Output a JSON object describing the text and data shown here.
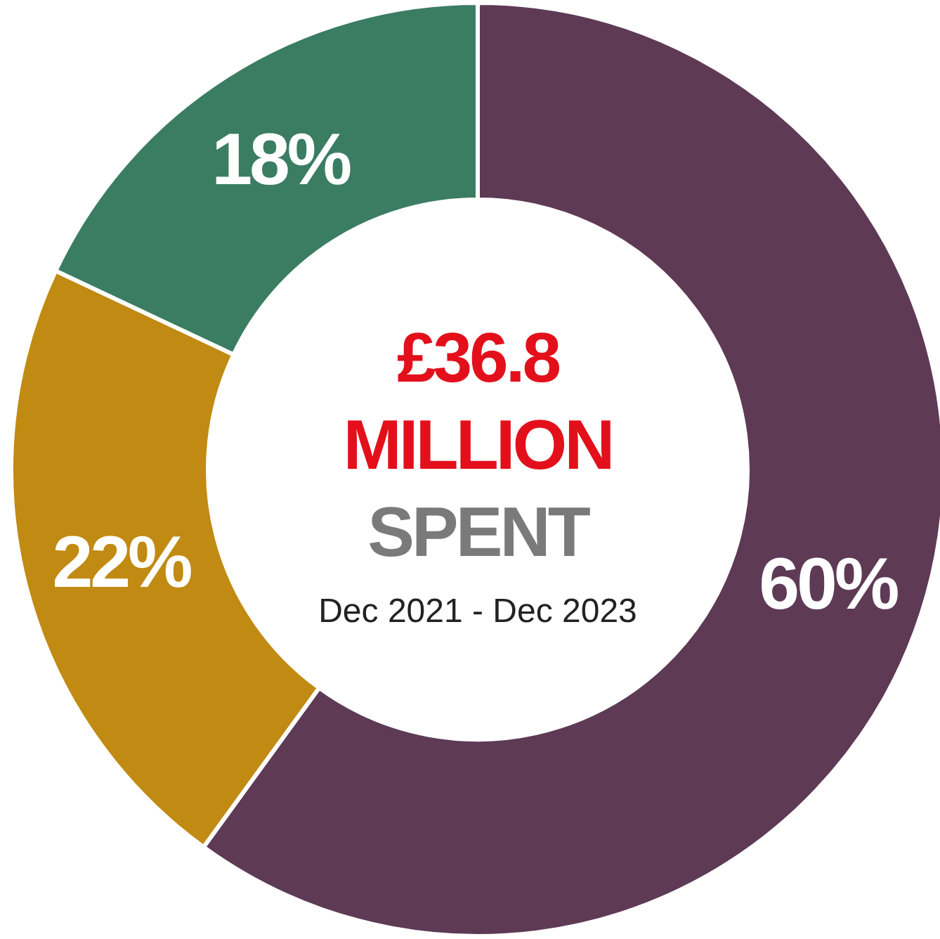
{
  "chart_data": {
    "type": "donut",
    "categories": [
      null,
      null,
      null
    ],
    "values": [
      60,
      22,
      18
    ],
    "colors": [
      "#5e3a55",
      "#c18a12",
      "#3a7d62"
    ],
    "value_labels": [
      "60%",
      "22%",
      "18%"
    ],
    "annotations": [
      "£36.8",
      "MILLION",
      "SPENT",
      "Dec 2021 - Dec 2023"
    ]
  }
}
